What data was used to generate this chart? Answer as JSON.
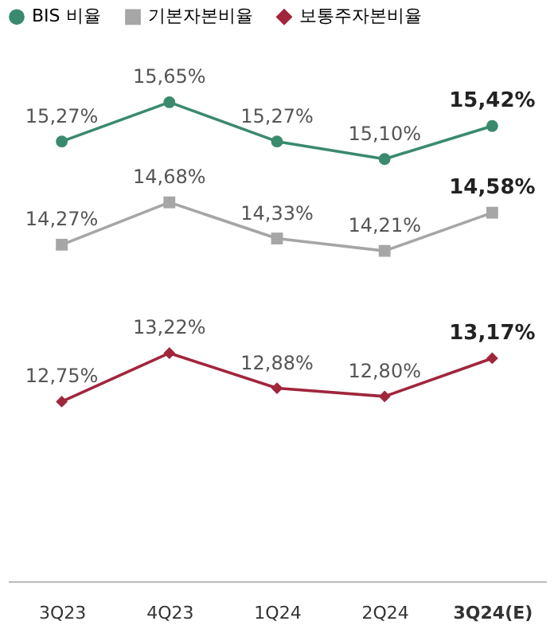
{
  "chart_data": {
    "type": "line",
    "categories": [
      "3Q23",
      "4Q23",
      "1Q24",
      "2Q24",
      "3Q24(E)"
    ],
    "series": [
      {
        "name": "BIS 비율",
        "color": "#3a8a6e",
        "marker": "circle",
        "values": [
          15.27,
          15.65,
          15.27,
          15.1,
          15.42
        ],
        "value_labels": [
          "15,27%",
          "15,65%",
          "15,27%",
          "15,10%",
          "15,42%"
        ]
      },
      {
        "name": "기본자본비율",
        "color": "#a6a6a6",
        "marker": "square",
        "values": [
          14.27,
          14.68,
          14.33,
          14.21,
          14.58
        ],
        "value_labels": [
          "14,27%",
          "14,68%",
          "14,33%",
          "14,21%",
          "14,58%"
        ]
      },
      {
        "name": "보통주자본비율",
        "color": "#a0263c",
        "marker": "diamond",
        "values": [
          12.75,
          13.22,
          12.88,
          12.8,
          13.17
        ],
        "value_labels": [
          "12,75%",
          "13,22%",
          "12,88%",
          "12,80%",
          "13,17%"
        ]
      }
    ],
    "legend": "top left",
    "grid": false,
    "line_style": "solid"
  }
}
